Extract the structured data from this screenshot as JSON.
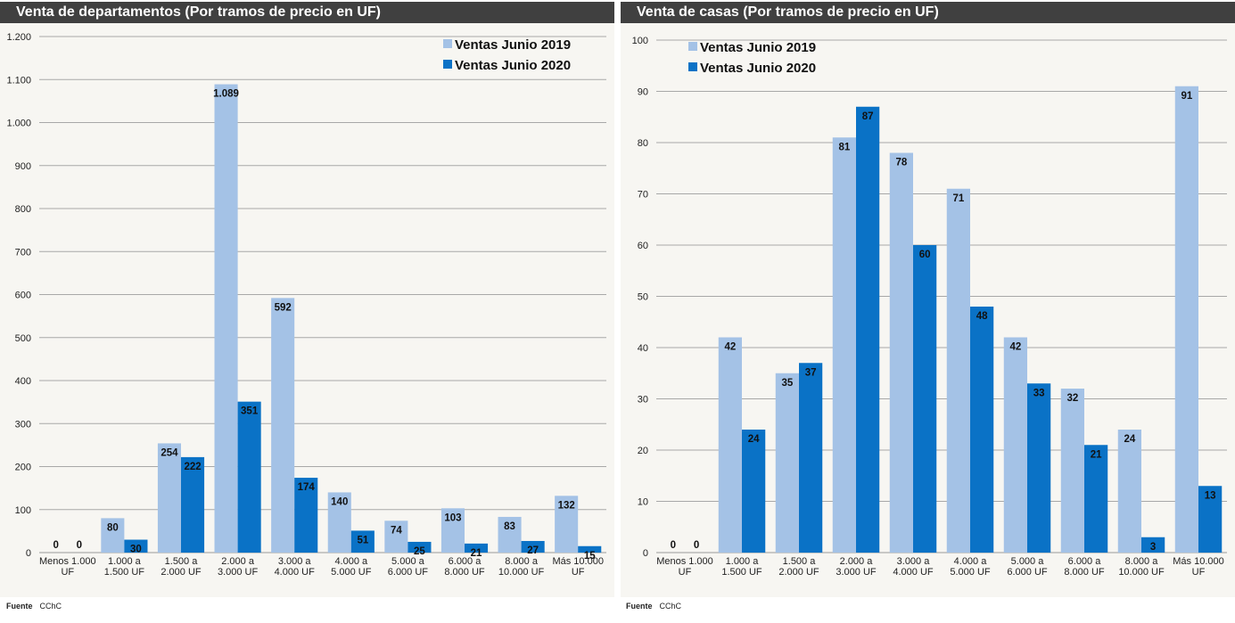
{
  "chart_data": [
    {
      "type": "bar",
      "title": "Venta de departamentos (Por tramos de precio en UF)",
      "categories": [
        [
          "Menos 1.000",
          "UF"
        ],
        [
          "1.000 a",
          "1.500 UF"
        ],
        [
          "1.500 a",
          "2.000 UF"
        ],
        [
          "2.000 a",
          "3.000 UF"
        ],
        [
          "3.000 a",
          "4.000 UF"
        ],
        [
          "4.000 a",
          "5.000 UF"
        ],
        [
          "5.000 a",
          "6.000 UF"
        ],
        [
          "6.000 a",
          "8.000 UF"
        ],
        [
          "8.000 a",
          "10.000 UF"
        ],
        [
          "Más 10.000",
          "UF"
        ]
      ],
      "series": [
        {
          "name": "Ventas Junio 2019",
          "color": "#a4c2e6",
          "values": [
            0,
            80,
            254,
            1089,
            592,
            140,
            74,
            103,
            83,
            132
          ],
          "labels": [
            "0",
            "80",
            "254",
            "1.089",
            "592",
            "140",
            "74",
            "103",
            "83",
            "132"
          ]
        },
        {
          "name": "Ventas Junio 2020",
          "color": "#0a72c6",
          "values": [
            0,
            30,
            222,
            351,
            174,
            51,
            25,
            21,
            27,
            15
          ],
          "labels": [
            "0",
            "30",
            "222",
            "351",
            "174",
            "51",
            "25",
            "21",
            "27",
            "15"
          ]
        }
      ],
      "ylim": [
        0,
        1200
      ],
      "yticks": [
        0,
        100,
        200,
        300,
        400,
        500,
        600,
        700,
        800,
        900,
        1000,
        1100,
        1200
      ],
      "ytick_labels": [
        "0",
        "100",
        "200",
        "300",
        "400",
        "500",
        "600",
        "700",
        "800",
        "900",
        "1.000",
        "1.100",
        "1.200"
      ],
      "grid": true,
      "legend": "top-right"
    },
    {
      "type": "bar",
      "title": "Venta de casas (Por tramos de precio en UF)",
      "categories": [
        [
          "Menos 1.000",
          "UF"
        ],
        [
          "1.000 a",
          "1.500 UF"
        ],
        [
          "1.500 a",
          "2.000 UF"
        ],
        [
          "2.000 a",
          "3.000 UF"
        ],
        [
          "3.000 a",
          "4.000 UF"
        ],
        [
          "4.000 a",
          "5.000 UF"
        ],
        [
          "5.000 a",
          "6.000 UF"
        ],
        [
          "6.000 a",
          "8.000 UF"
        ],
        [
          "8.000 a",
          "10.000 UF"
        ],
        [
          "Más 10.000",
          "UF"
        ]
      ],
      "series": [
        {
          "name": "Ventas Junio 2019",
          "color": "#a4c2e6",
          "values": [
            0,
            42,
            35,
            81,
            78,
            71,
            42,
            32,
            24,
            91
          ],
          "labels": [
            "0",
            "42",
            "35",
            "81",
            "78",
            "71",
            "42",
            "32",
            "24",
            "91"
          ]
        },
        {
          "name": "Ventas Junio 2020",
          "color": "#0a72c6",
          "values": [
            0,
            24,
            37,
            87,
            60,
            48,
            33,
            21,
            3,
            13
          ],
          "labels": [
            "0",
            "24",
            "37",
            "87",
            "60",
            "48",
            "33",
            "21",
            "3",
            "13"
          ]
        }
      ],
      "ylim": [
        0,
        100
      ],
      "yticks": [
        0,
        10,
        20,
        30,
        40,
        50,
        60,
        70,
        80,
        90,
        100
      ],
      "ytick_labels": [
        "0",
        "10",
        "20",
        "30",
        "40",
        "50",
        "60",
        "70",
        "80",
        "90",
        "100"
      ],
      "grid": true,
      "legend": "top-left"
    }
  ],
  "footer": {
    "label": "Fuente",
    "source": "CChC"
  }
}
